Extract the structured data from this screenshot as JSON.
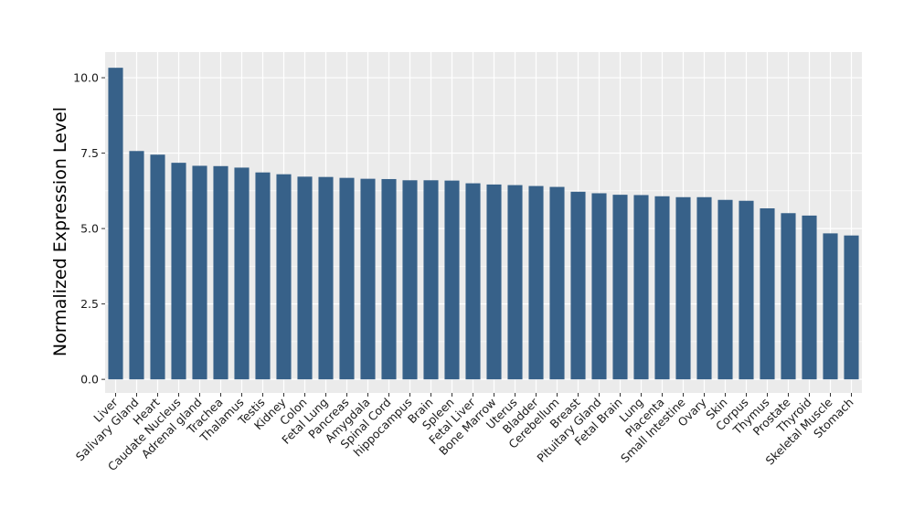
{
  "chart_data": {
    "type": "bar",
    "title": "",
    "xlabel": "",
    "ylabel": "Normalized Expression Level",
    "ylim": [
      -0.45,
      10.85
    ],
    "yticks": [
      0.0,
      2.5,
      5.0,
      7.5,
      10.0
    ],
    "ytick_labels": [
      "0.0",
      "2.5",
      "5.0",
      "7.5",
      "10.0"
    ],
    "grid": true,
    "bar_color": "#376189",
    "panel_background": "#ebebeb",
    "grid_color": "#ffffff",
    "categories": [
      "Liver",
      "Salivary Gland",
      "Heart",
      "Caudate Nucleus",
      "Adrenal gland",
      "Trachea",
      "Thalamus",
      "Testis",
      "Kidney",
      "Colon",
      "Fetal Lung",
      "Pancreas",
      "Amygdala",
      "Spinal Cord",
      "hippocampus",
      "Brain",
      "Spleen",
      "Fetal Liver",
      "Bone Marrow",
      "Uterus",
      "Bladder",
      "Cerebellum",
      "Breast",
      "Pituitary Gland",
      "Fetal Brain",
      "Lung",
      "Placenta",
      "Small Intestine",
      "Ovary",
      "Skin",
      "Corpus",
      "Thymus",
      "Prostate",
      "Thyroid",
      "Skeletal Muscle",
      "Stomach"
    ],
    "values": [
      10.33,
      7.57,
      7.45,
      7.18,
      7.08,
      7.07,
      7.02,
      6.86,
      6.8,
      6.72,
      6.71,
      6.68,
      6.65,
      6.64,
      6.6,
      6.6,
      6.59,
      6.5,
      6.46,
      6.44,
      6.41,
      6.38,
      6.22,
      6.17,
      6.12,
      6.11,
      6.07,
      6.04,
      6.04,
      5.95,
      5.92,
      5.67,
      5.51,
      5.43,
      4.84,
      4.77
    ]
  }
}
